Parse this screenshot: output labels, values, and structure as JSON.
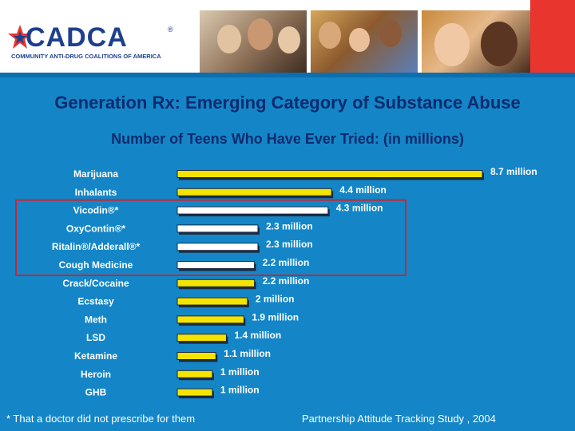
{
  "header": {
    "logo_text": "CADCA",
    "logo_registered": "®",
    "logo_subtitle": "COMMUNITY ANTI-DRUG COALITIONS OF AMERICA"
  },
  "slide": {
    "title": "Generation Rx: Emerging Category of Substance Abuse",
    "footnote": "* That a doctor did not prescribe for them",
    "source": "Partnership Attitude Tracking Study , 2004"
  },
  "colors": {
    "background": "#1486c7",
    "bar_street": "#f5e400",
    "bar_rx": "#ffffff",
    "highlight_box": "#c8262f",
    "title_text": "#0b2b6e",
    "header_red": "#e8352e"
  },
  "chart_data": {
    "type": "bar",
    "orientation": "horizontal",
    "title": "Number of Teens Who Have Ever Tried: (in millions)",
    "unit": "millions",
    "categories": [
      "Marijuana",
      "Inhalants",
      "Vicodin®*",
      "OxyContin®*",
      "Ritalin®/Adderall®*",
      "Cough Medicine",
      "Crack/Cocaine",
      "Ecstasy",
      "Meth",
      "LSD",
      "Ketamine",
      "Heroin",
      "GHB"
    ],
    "values": [
      8.7,
      4.4,
      4.3,
      2.3,
      2.3,
      2.2,
      2.2,
      2.0,
      1.9,
      1.4,
      1.1,
      1.0,
      1.0
    ],
    "value_labels": [
      "8.7 million",
      "4.4 million",
      "4.3 million",
      "2.3 million",
      "2.3 million",
      "2.2 million",
      "2.2 million",
      "2 million",
      "1.9 million",
      "1.4 million",
      "1.1 million",
      "1 million",
      "1 million"
    ],
    "highlighted": [
      false,
      false,
      true,
      true,
      true,
      true,
      false,
      false,
      false,
      false,
      false,
      false,
      false
    ],
    "xlim": [
      0,
      8.7
    ]
  }
}
